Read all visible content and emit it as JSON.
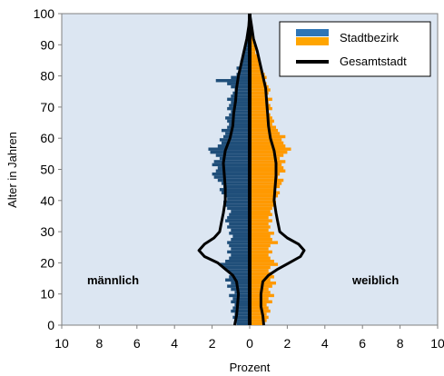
{
  "chart_data": {
    "type": "bar",
    "orientation": "horizontal-pyramid",
    "xlabel": "Prozent",
    "ylabel": "Alter in Jahren",
    "xlim": [
      -10,
      10
    ],
    "ylim": [
      0,
      100
    ],
    "x_ticks": [
      -10,
      -8,
      -6,
      -4,
      -2,
      0,
      2,
      4,
      6,
      8,
      10
    ],
    "x_tick_labels": [
      "10",
      "8",
      "6",
      "4",
      "2",
      "0",
      "2",
      "4",
      "6",
      "8",
      "10"
    ],
    "y_ticks": [
      0,
      10,
      20,
      30,
      40,
      50,
      60,
      70,
      80,
      90,
      100
    ],
    "side_labels": {
      "left": "männlich",
      "right": "weiblich"
    },
    "legend": {
      "placement": "top-right",
      "entries": [
        {
          "key": "stadtbezirk",
          "label": "Stadtbezirk",
          "colors": [
            "#2e75b6",
            "#ffa500"
          ]
        },
        {
          "key": "gesamtstadt",
          "label": "Gesamtstadt",
          "color": "#000000"
        }
      ]
    },
    "colors": {
      "male": "#1f4e79",
      "female": "#ff9900",
      "plot_bg": "#dce6f2",
      "line": "#000000",
      "center": "#000000"
    },
    "ages": [
      0,
      1,
      2,
      3,
      4,
      5,
      6,
      7,
      8,
      9,
      10,
      11,
      12,
      13,
      14,
      15,
      16,
      17,
      18,
      19,
      20,
      21,
      22,
      23,
      24,
      25,
      26,
      27,
      28,
      29,
      30,
      31,
      32,
      33,
      34,
      35,
      36,
      37,
      38,
      39,
      40,
      41,
      42,
      43,
      44,
      45,
      46,
      47,
      48,
      49,
      50,
      51,
      52,
      53,
      54,
      55,
      56,
      57,
      58,
      59,
      60,
      61,
      62,
      63,
      64,
      65,
      66,
      67,
      68,
      69,
      70,
      71,
      72,
      73,
      74,
      75,
      76,
      77,
      78,
      79,
      80,
      81,
      82,
      83,
      84,
      85,
      86,
      87,
      88,
      89,
      90,
      91,
      92,
      93,
      94,
      95,
      96,
      97,
      98,
      99
    ],
    "series": [
      {
        "name": "Stadtbezirk männlich",
        "values": [
          0.7,
          0.8,
          0.9,
          0.8,
          1.0,
          0.9,
          0.8,
          1.0,
          0.9,
          1.1,
          0.8,
          1.0,
          1.2,
          1.0,
          1.3,
          1.1,
          1.0,
          1.2,
          1.4,
          1.6,
          1.3,
          1.1,
          1.0,
          1.2,
          1.0,
          1.1,
          1.2,
          1.0,
          0.9,
          1.1,
          1.0,
          1.2,
          1.1,
          1.3,
          1.2,
          1.1,
          1.0,
          1.2,
          1.3,
          1.4,
          1.2,
          1.3,
          1.5,
          1.6,
          1.4,
          1.5,
          1.7,
          1.9,
          2.0,
          1.8,
          1.7,
          2.0,
          1.9,
          1.6,
          1.8,
          2.1,
          2.2,
          1.7,
          1.5,
          1.6,
          1.4,
          1.3,
          1.5,
          1.2,
          1.1,
          1.2,
          1.3,
          1.1,
          1.0,
          1.2,
          1.1,
          1.0,
          1.2,
          1.0,
          0.9,
          0.8,
          1.0,
          1.2,
          1.8,
          1.0,
          0.7,
          0.6,
          0.7,
          0.5,
          0.5,
          0.4,
          0.4,
          0.3,
          0.3,
          0.2,
          0.2,
          0.2,
          0.1,
          0.1,
          0.1,
          0.1,
          0.05,
          0.05,
          0.03,
          0.02
        ]
      },
      {
        "name": "Stadtbezirk weiblich",
        "values": [
          0.8,
          0.9,
          1.0,
          0.9,
          1.1,
          1.0,
          0.9,
          1.2,
          1.0,
          1.3,
          1.1,
          1.0,
          1.2,
          1.4,
          1.1,
          1.3,
          1.2,
          1.0,
          1.1,
          1.5,
          1.3,
          1.1,
          1.0,
          1.2,
          1.0,
          1.1,
          1.5,
          1.2,
          1.1,
          1.3,
          1.0,
          1.1,
          1.0,
          1.2,
          1.0,
          1.2,
          1.1,
          1.2,
          1.3,
          1.4,
          1.3,
          1.5,
          1.6,
          1.4,
          1.6,
          1.7,
          1.8,
          1.5,
          1.6,
          1.9,
          1.8,
          1.7,
          1.9,
          1.6,
          1.8,
          2.0,
          2.2,
          1.9,
          1.8,
          1.7,
          1.9,
          1.6,
          1.5,
          1.4,
          1.2,
          1.3,
          1.2,
          1.1,
          1.0,
          1.2,
          1.1,
          1.0,
          1.2,
          0.9,
          1.0,
          1.1,
          1.0,
          0.9,
          0.8,
          0.9,
          0.8,
          0.7,
          0.6,
          0.6,
          0.5,
          0.5,
          0.4,
          0.3,
          0.3,
          0.3,
          0.2,
          0.2,
          0.2,
          0.1,
          0.1,
          0.1,
          0.05,
          0.05,
          0.03,
          0.02
        ]
      },
      {
        "name": "Gesamtstadt männlich",
        "values": [
          [
            0,
            0.8
          ],
          [
            3,
            0.7
          ],
          [
            6,
            0.65
          ],
          [
            10,
            0.6
          ],
          [
            14,
            0.7
          ],
          [
            16,
            0.9
          ],
          [
            18,
            1.3
          ],
          [
            20,
            1.7
          ],
          [
            22,
            2.4
          ],
          [
            24,
            2.7
          ],
          [
            26,
            2.4
          ],
          [
            28,
            1.9
          ],
          [
            30,
            1.6
          ],
          [
            33,
            1.5
          ],
          [
            36,
            1.4
          ],
          [
            40,
            1.3
          ],
          [
            44,
            1.3
          ],
          [
            48,
            1.35
          ],
          [
            52,
            1.4
          ],
          [
            56,
            1.3
          ],
          [
            60,
            1.05
          ],
          [
            64,
            0.9
          ],
          [
            68,
            0.85
          ],
          [
            72,
            0.75
          ],
          [
            76,
            0.7
          ],
          [
            80,
            0.6
          ],
          [
            84,
            0.45
          ],
          [
            88,
            0.3
          ],
          [
            92,
            0.15
          ],
          [
            96,
            0.05
          ],
          [
            100,
            0.0
          ]
        ]
      },
      {
        "name": "Gesamtstadt weiblich",
        "values": [
          [
            0,
            0.75
          ],
          [
            3,
            0.7
          ],
          [
            6,
            0.6
          ],
          [
            10,
            0.6
          ],
          [
            14,
            0.7
          ],
          [
            16,
            1.0
          ],
          [
            18,
            1.5
          ],
          [
            20,
            2.1
          ],
          [
            22,
            2.7
          ],
          [
            24,
            2.9
          ],
          [
            26,
            2.6
          ],
          [
            28,
            2.0
          ],
          [
            30,
            1.6
          ],
          [
            33,
            1.5
          ],
          [
            36,
            1.4
          ],
          [
            40,
            1.3
          ],
          [
            44,
            1.35
          ],
          [
            48,
            1.4
          ],
          [
            52,
            1.4
          ],
          [
            56,
            1.3
          ],
          [
            60,
            1.1
          ],
          [
            64,
            1.0
          ],
          [
            68,
            0.95
          ],
          [
            72,
            0.9
          ],
          [
            76,
            0.85
          ],
          [
            80,
            0.7
          ],
          [
            84,
            0.55
          ],
          [
            88,
            0.4
          ],
          [
            92,
            0.2
          ],
          [
            96,
            0.1
          ],
          [
            100,
            0.0
          ]
        ]
      }
    ]
  }
}
